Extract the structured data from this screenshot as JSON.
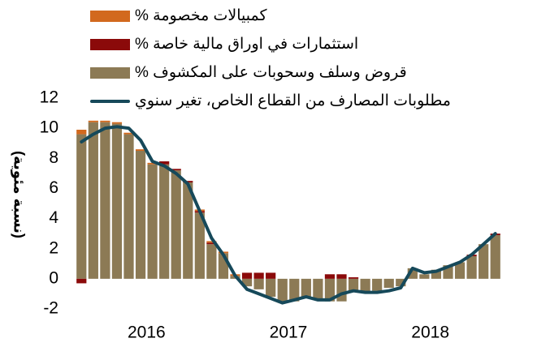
{
  "chart_data": {
    "type": "bar",
    "y_label": "(نسبة مئوية)",
    "categories": [
      null,
      null,
      null,
      null,
      null,
      null,
      null,
      null,
      null,
      null,
      null,
      null,
      null,
      null,
      null,
      null,
      null,
      null,
      null,
      null,
      null,
      null,
      null,
      null,
      null,
      null,
      null,
      null,
      null,
      null,
      null,
      null,
      null,
      null,
      null,
      null
    ],
    "year_labels": [
      "2016",
      "2017",
      "2018"
    ],
    "series": [
      {
        "name": "قروض وسلف وسحوبات على المكشوف %",
        "color": "#8c7a55",
        "stack": true,
        "values": [
          9.6,
          10.4,
          10.4,
          10.3,
          9.6,
          8.5,
          7.6,
          7.6,
          7.2,
          6.4,
          4.4,
          2.3,
          1.7,
          0.2,
          -0.5,
          -0.7,
          -1.2,
          -1.6,
          -1.5,
          -1.3,
          -1.4,
          -1.5,
          -1.5,
          -0.8,
          -0.9,
          -0.8,
          -0.6,
          -0.5,
          0.7,
          0.3,
          0.6,
          0.9,
          1.1,
          1.5,
          2.3,
          2.9
        ]
      },
      {
        "name": "استثمارات في اوراق مالية خاصة %",
        "color": "#8b0a0a",
        "stack": true,
        "values": [
          -0.3,
          0,
          0,
          0,
          0,
          0,
          0,
          0.2,
          0.1,
          0.1,
          0.1,
          0.1,
          0,
          0,
          0.4,
          0.4,
          0.4,
          0,
          0,
          0,
          0,
          0.3,
          0.3,
          0.1,
          0,
          0,
          0,
          0,
          0,
          0,
          0,
          0,
          0,
          0.1,
          0,
          0.1
        ]
      },
      {
        "name": "كمبيالات مخصومة %",
        "color": "#d2691e",
        "stack": true,
        "values": [
          0.3,
          0.1,
          0.1,
          0.1,
          0.1,
          0.1,
          0.1,
          0,
          0,
          0,
          0.1,
          0.1,
          0.1,
          0.1,
          0,
          0,
          0,
          0,
          0,
          0,
          0,
          0,
          0,
          0,
          0,
          0,
          0,
          0,
          0,
          0,
          0,
          0,
          0,
          0,
          0,
          0
        ]
      },
      {
        "name": "مطلوبات المصارف من القطاع الخاص، تغير سنوي",
        "color": "#16495a",
        "line": true,
        "values": [
          9.1,
          9.6,
          10.0,
          10.1,
          10.0,
          9.2,
          7.8,
          7.5,
          7.0,
          6.3,
          4.5,
          2.7,
          1.6,
          0.2,
          -0.7,
          -1.0,
          -1.3,
          -1.6,
          -1.4,
          -1.2,
          -1.4,
          -1.4,
          -1.0,
          -0.8,
          -0.9,
          -0.9,
          -0.8,
          -0.6,
          0.7,
          0.4,
          0.5,
          0.8,
          1.1,
          1.6,
          2.3,
          3.0
        ]
      }
    ],
    "ylim": [
      -2,
      12
    ],
    "yticks": [
      -2,
      0,
      2,
      4,
      6,
      8,
      10,
      12
    ],
    "grid": false
  }
}
